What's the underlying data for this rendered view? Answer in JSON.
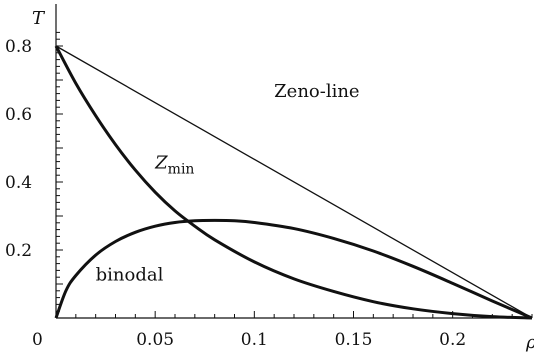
{
  "chart_data": {
    "type": "line",
    "xlabel": "ρ",
    "ylabel": "T",
    "xlim": [
      0,
      0.24
    ],
    "ylim": [
      0,
      0.9
    ],
    "x_ticks": [
      0.05,
      0.1,
      0.15,
      0.2
    ],
    "x_tick_labels": [
      "0.05",
      "0.1",
      "0.15",
      "0.2"
    ],
    "y_ticks": [
      0.2,
      0.4,
      0.6,
      0.8
    ],
    "y_tick_labels": [
      "0.2",
      "0.4",
      "0.6",
      "0.8"
    ],
    "origin_label": "0",
    "grid": false,
    "series": [
      {
        "name": "Zeno-line",
        "x": [
          0,
          0.24
        ],
        "y": [
          0.8,
          0
        ]
      },
      {
        "name": "Z_min",
        "x": [
          0,
          0.01,
          0.02,
          0.03,
          0.04,
          0.05,
          0.06,
          0.07,
          0.08,
          0.1,
          0.12,
          0.14,
          0.16,
          0.18,
          0.2,
          0.22,
          0.24
        ],
        "y": [
          0.8,
          0.69,
          0.595,
          0.51,
          0.435,
          0.37,
          0.315,
          0.27,
          0.23,
          0.165,
          0.115,
          0.078,
          0.048,
          0.027,
          0.013,
          0.004,
          0
        ]
      },
      {
        "name": "binodal",
        "x": [
          0,
          0.005,
          0.01,
          0.02,
          0.03,
          0.04,
          0.05,
          0.06,
          0.07,
          0.08,
          0.09,
          0.1,
          0.12,
          0.14,
          0.16,
          0.18,
          0.2,
          0.22,
          0.24
        ],
        "y": [
          0,
          0.08,
          0.125,
          0.185,
          0.225,
          0.252,
          0.27,
          0.281,
          0.286,
          0.287,
          0.286,
          0.281,
          0.263,
          0.234,
          0.197,
          0.152,
          0.102,
          0.05,
          0
        ]
      }
    ],
    "annotations": [
      {
        "text": "Zeno-line",
        "x": 0.11,
        "y": 0.65
      },
      {
        "text": "Z",
        "subscript": "min",
        "x": 0.05,
        "y": 0.44
      },
      {
        "text": "binodal",
        "x": 0.02,
        "y": 0.11
      }
    ]
  }
}
